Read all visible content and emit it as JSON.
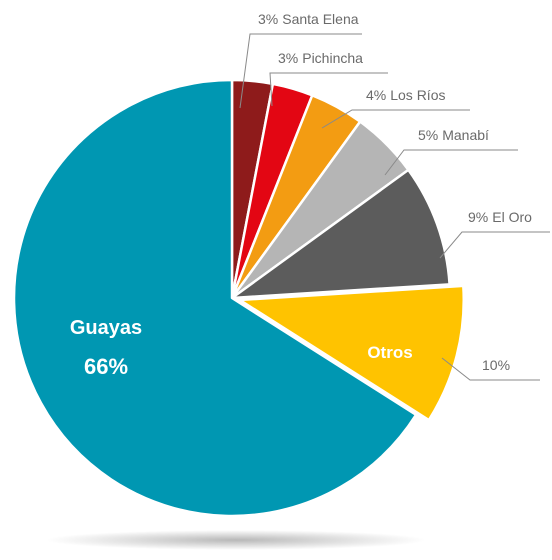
{
  "chart_data": {
    "type": "pie",
    "categories": [
      "Santa Elena",
      "Pichincha",
      "Los Ríos",
      "Manabí",
      "El Oro",
      "Otros",
      "Guayas"
    ],
    "values": [
      3,
      3,
      4,
      5,
      9,
      10,
      66
    ],
    "value_labels": [
      "3%",
      "3%",
      "4%",
      "5%",
      "9%",
      "10%",
      "66%"
    ],
    "colors": [
      "#8e1b1b",
      "#e30613",
      "#f39c12",
      "#b5b5b5",
      "#5c5c5c",
      "#ffc300",
      "#0097b2"
    ]
  }
}
